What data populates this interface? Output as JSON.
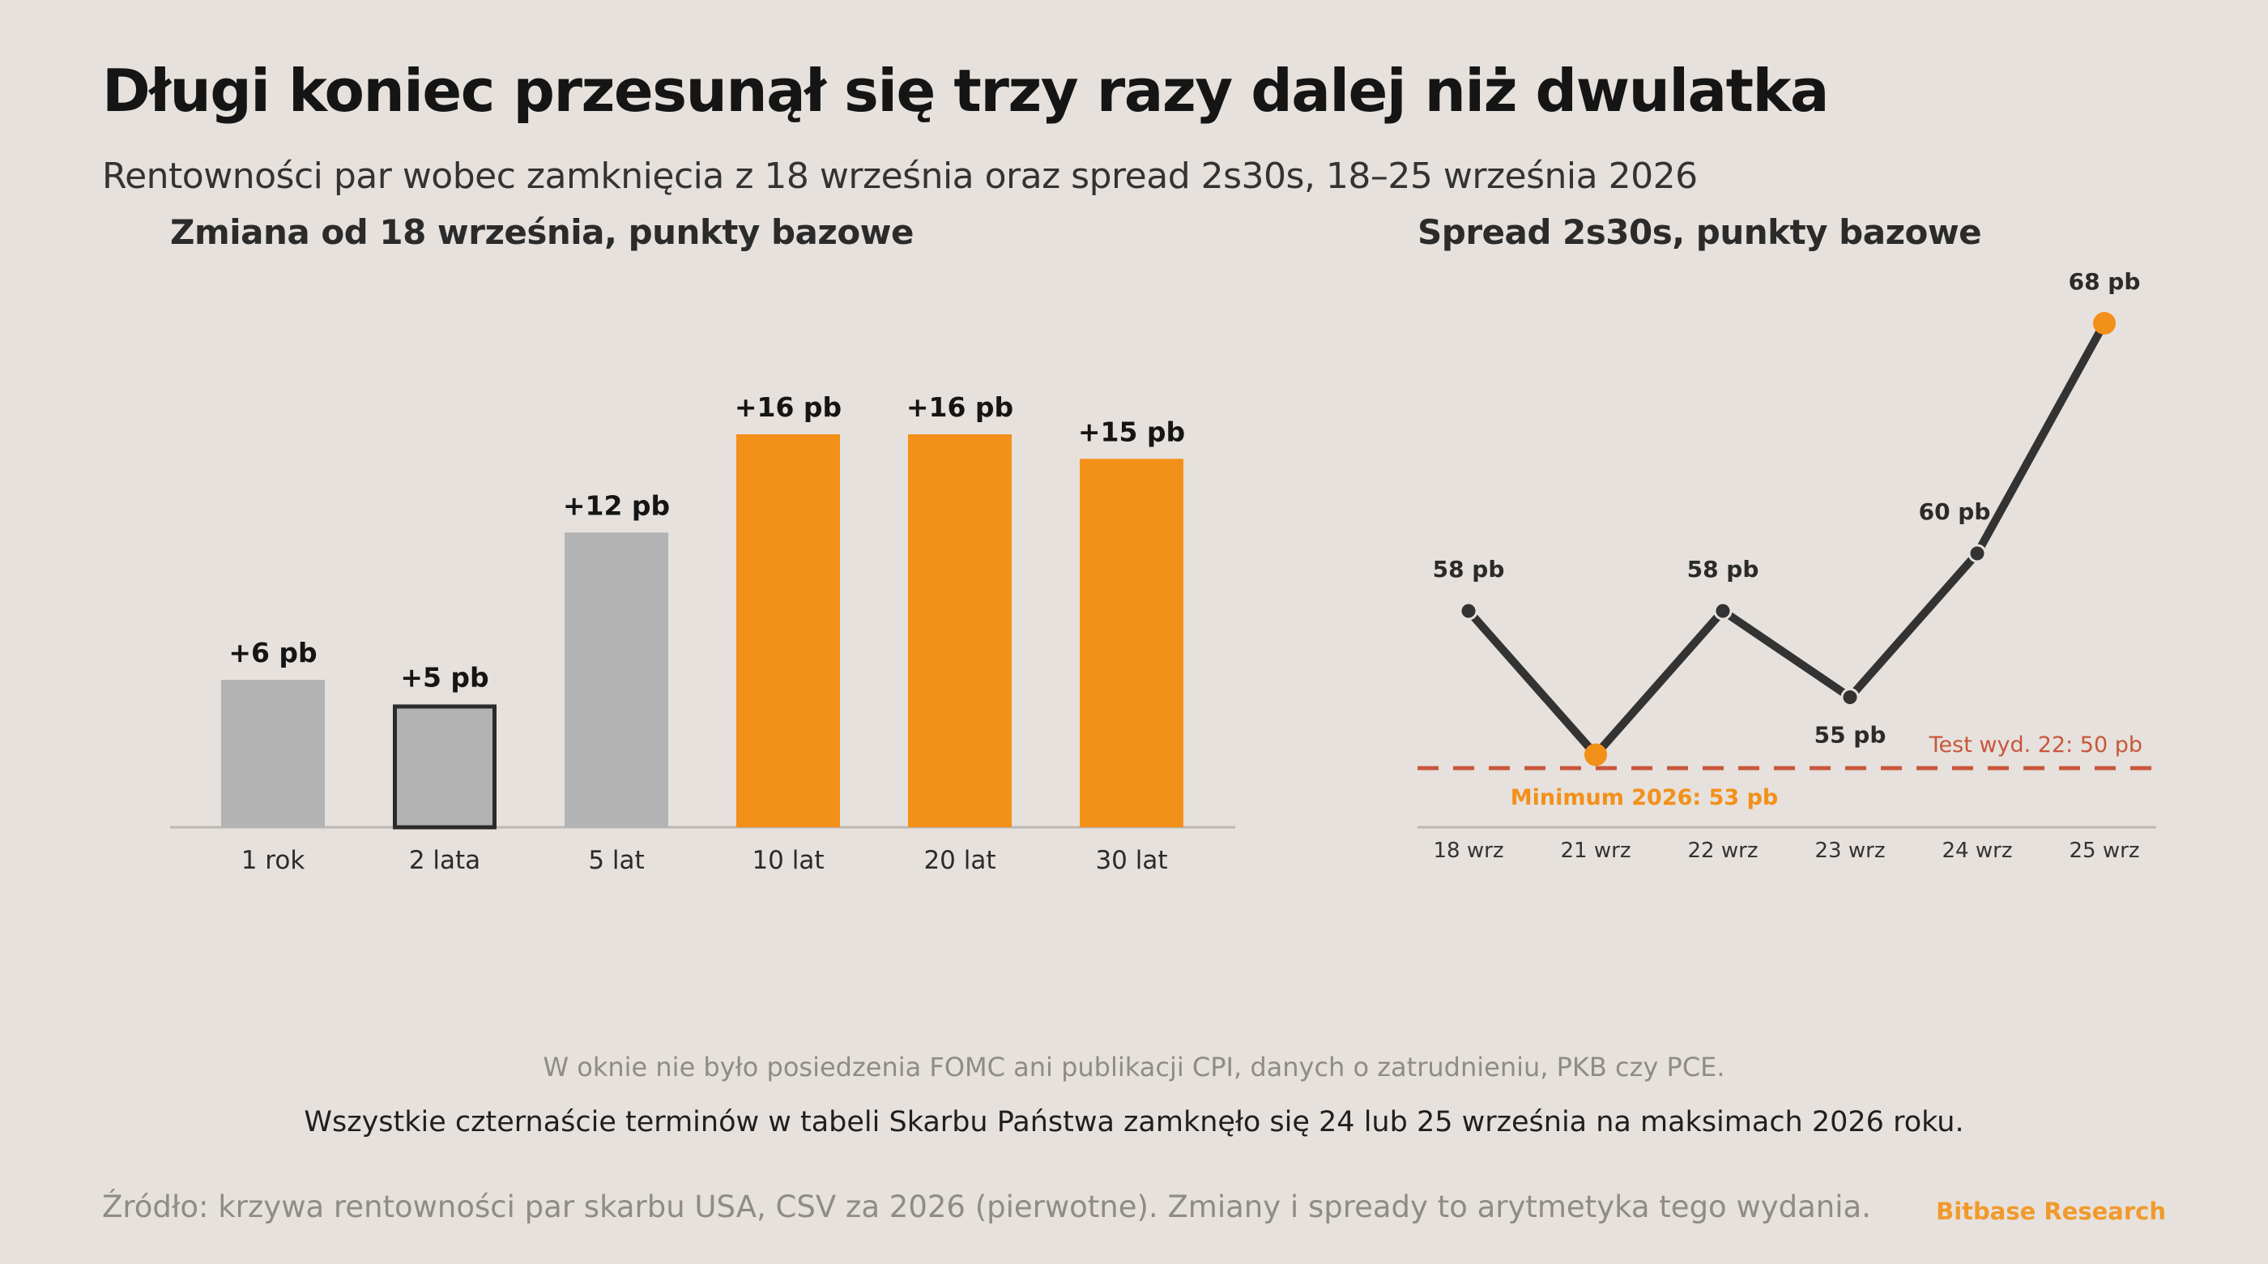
{
  "header": {
    "title": "Długi koniec przesunął się trzy razy dalej niż dwulatka",
    "subtitle": "Rentowności par wobec zamknięcia z 18 września oraz spread 2s30s, 18–25 września 2026"
  },
  "colors": {
    "background": "#e6e1dc",
    "bar_gray": "#b3b3b3",
    "bar_orange": "#f39019",
    "line": "#333333",
    "highlight": "#f39019",
    "reference_line": "#c9563c",
    "brand": "#f19a2b"
  },
  "chart_data": [
    {
      "type": "bar",
      "title": "Zmiana od 18 września, punkty bazowe",
      "categories": [
        "1 rok",
        "2 lata",
        "5 lat",
        "10 lat",
        "20 lat",
        "30 lat"
      ],
      "values": [
        6,
        5,
        12,
        16,
        16,
        15
      ],
      "value_labels": [
        "+6 pb",
        "+5 pb",
        "+12 pb",
        "+16 pb",
        "+16 pb",
        "+15 pb"
      ],
      "bar_colors": [
        "gray",
        "gray",
        "gray",
        "orange",
        "orange",
        "orange"
      ],
      "outlined_category": "2 lata",
      "ylim": [
        0,
        16
      ],
      "grid": false,
      "legend": "none"
    },
    {
      "type": "line",
      "title": "Spread 2s30s, punkty bazowe",
      "x": [
        "18 wrz",
        "21 wrz",
        "22 wrz",
        "23 wrz",
        "24 wrz",
        "25 wrz"
      ],
      "values": [
        58,
        53,
        58,
        55,
        60,
        68
      ],
      "point_labels": [
        "58 pb",
        "",
        "58 pb",
        "55 pb",
        "60 pb",
        "68 pb"
      ],
      "highlighted_points": [
        "21 wrz",
        "25 wrz"
      ],
      "ylim": [
        45,
        70
      ],
      "reference_line": {
        "value": 50,
        "label": "Test wyd. 22: 50 pb"
      },
      "annotation": "Minimum 2026: 53 pb",
      "grid": false,
      "legend": "none"
    }
  ],
  "notes": {
    "line1": "W oknie nie było posiedzenia FOMC ani publikacji CPI, danych o zatrudnieniu, PKB czy PCE.",
    "line2": "Wszystkie czternaście terminów w tabeli Skarbu Państwa zamknęło się 24 lub 25 września na maksimach 2026 roku."
  },
  "footer": {
    "source": "Źródło: krzywa rentowności par skarbu USA, CSV za 2026 (pierwotne). Zmiany i spready to arytmetyka tego wydania.",
    "brand": "Bitbase Research"
  }
}
